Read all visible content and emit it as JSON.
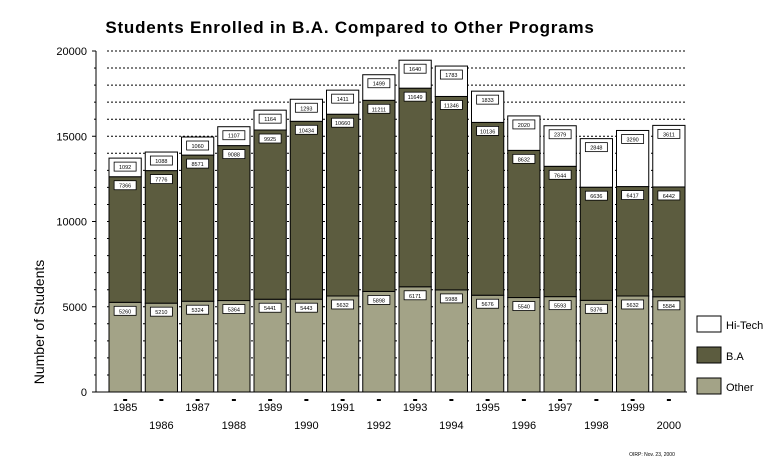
{
  "chart_data": {
    "type": "bar",
    "stacked": true,
    "title": "Students Enrolled in B.A. Compared to Other Programs",
    "ylabel": "Number of Students",
    "xlabel": "",
    "ylim": [
      0,
      20000
    ],
    "yticks": [
      0,
      5000,
      10000,
      15000,
      20000
    ],
    "categories": [
      "1985",
      "1986",
      "1987",
      "1988",
      "1989",
      "1990",
      "1991",
      "1992",
      "1993",
      "1994",
      "1995",
      "1996",
      "1997",
      "1998",
      "1999",
      "2000"
    ],
    "series": [
      {
        "name": "Other",
        "color": "#a3a387",
        "values": [
          5260,
          5210,
          5324,
          5364,
          5441,
          5443,
          5632,
          5898,
          6171,
          5988,
          5676,
          5540,
          5593,
          5376,
          5632,
          5584
        ]
      },
      {
        "name": "B.A",
        "color": "#5c5c3f",
        "values": [
          7366,
          7776,
          8571,
          9088,
          9925,
          10434,
          10660,
          11211,
          11649,
          11346,
          10136,
          8632,
          7644,
          6636,
          6417,
          6442
        ]
      },
      {
        "name": "Hi-Tech",
        "color": "#ffffff",
        "values": [
          1092,
          1088,
          1060,
          1107,
          1164,
          1293,
          1411,
          1499,
          1640,
          1783,
          1833,
          2020,
          2379,
          2848,
          3290,
          3611
        ]
      }
    ],
    "legend": "right",
    "grid": "dotted horizontal",
    "footnote": "OIRP: Nov. 23, 2000"
  }
}
